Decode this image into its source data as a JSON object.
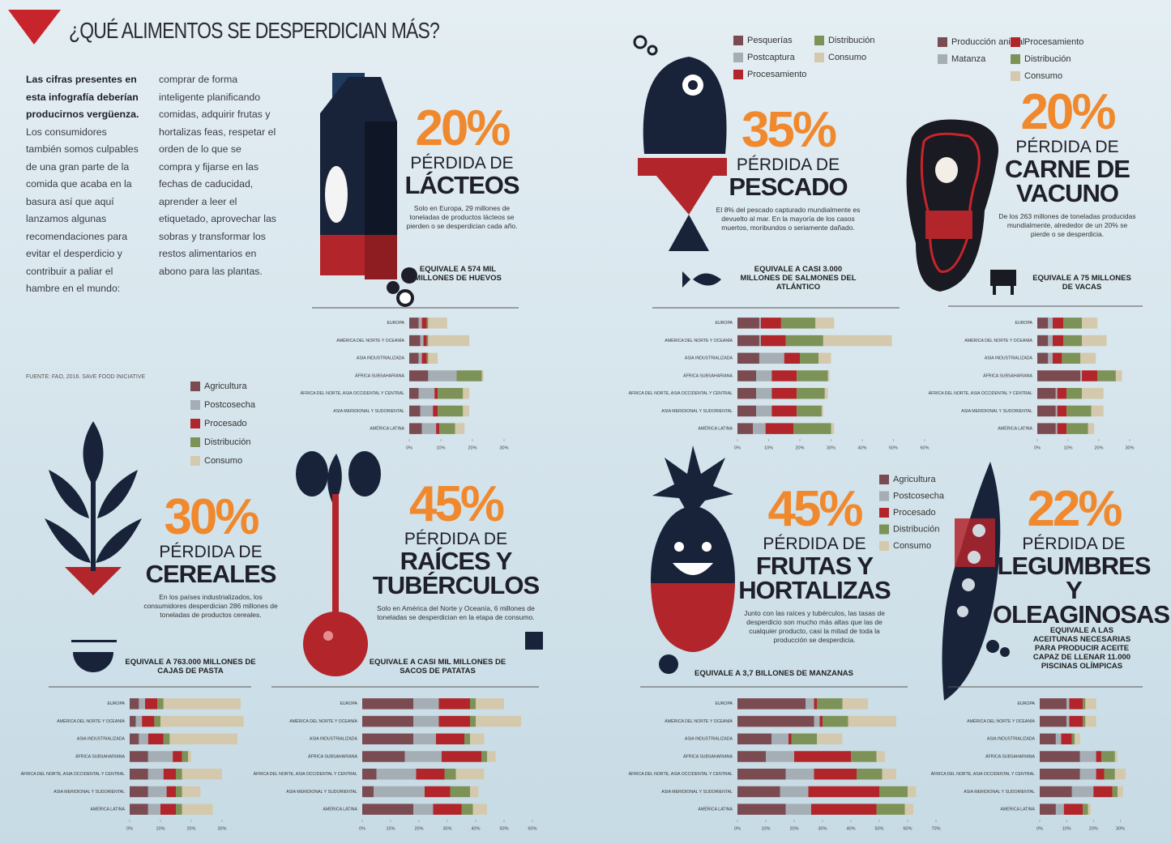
{
  "header": {
    "title": "¿QUÉ ALIMENTOS SE DESPERDICIAN MÁS?"
  },
  "intro": {
    "lead": "Las cifras presentes en esta infografía deberían producirnos vergüenza.",
    "text": "Los consumidores también somos culpables de una gran parte de la comida que acaba en la basura así que aquí lanzamos algunas recomendaciones para evitar el desperdicio y contribuir a paliar el hambre en el mundo: comprar de forma inteligente planificando comidas, adquirir frutas y hortalizas feas, respetar el orden de lo que se compra y fijarse en las fechas de caducidad, aprender a leer el etiquetado, aprovechar las sobras y transformar los restos alimentarios en abono para las plantas.",
    "source": "FUENTE: FAO, 2016. SAVE FOOD INICIATIVE"
  },
  "sections": [
    {
      "percent": "20%",
      "loss_label": "PÉRDIDA DE",
      "food": "LÁCTEOS",
      "description": "Solo en Europa, 29 millones de toneladas de productos lácteos se pierden o se desperdician cada año.",
      "equivalence": "EQUIVALE A 574 MIL MILLONES DE HUEVOS"
    },
    {
      "percent": "35%",
      "loss_label": "PÉRDIDA DE",
      "food": "PESCADO",
      "description": "El 8% del pescado capturado mundialmente es devuelto al mar. En la mayoría de los casos muertos, moribundos o seriamente dañado.",
      "equivalence": "EQUIVALE A CASI 3.000 MILLONES DE SALMONES DEL ATLÁNTICO"
    },
    {
      "percent": "20%",
      "loss_label": "PÉRDIDA DE",
      "food": "CARNE DE VACUNO",
      "description": "De los 263 millones de toneladas producidas mundialmente, alrededor de un 20% se pierde o se desperdicia.",
      "equivalence": "EQUIVALE A 75 MILLONES DE VACAS"
    },
    {
      "percent": "30%",
      "loss_label": "PÉRDIDA DE",
      "food": "CEREALES",
      "description": "En los países industrializados, los consumidores desperdician 286 millones de toneladas de productos cereales.",
      "equivalence": "EQUIVALE A 763.000 MILLONES DE CAJAS DE PASTA"
    },
    {
      "percent": "45%",
      "loss_label": "PÉRDIDA DE",
      "food": "RAÍCES Y TUBÉRCULOS",
      "description": "Solo en América del Norte y Oceanía, 6 millones de toneladas se desperdician en la etapa de consumo.",
      "equivalence": "EQUIVALE A CASI MIL MILLONES DE SACOS DE PATATAS"
    },
    {
      "percent": "45%",
      "loss_label": "PÉRDIDA DE",
      "food": "FRUTAS Y HORTALIZAS",
      "description": "Junto con las raíces y tubérculos, las tasas de desperdicio son mucho más altas que las de cualquier producto, casi la mitad de toda la producción se desperdicia.",
      "equivalence": "EQUIVALE A 3,7 BILLONES DE MANZANAS"
    },
    {
      "percent": "22%",
      "loss_label": "PÉRDIDA DE",
      "food": "LEGUMBRES Y OLEAGINOSAS",
      "equivalence": "EQUIVALE A LAS ACEITUNAS NECESARIAS PARA PRODUCIR ACEITE CAPAZ DE LLENAR 11.000 PISCINAS OLÍMPICAS"
    }
  ],
  "chart_data": [
    {
      "type": "stacked-barh",
      "categories": [
        "EUROPA",
        "AMÉRICA DEL NORTE Y OCEANÍA",
        "ASIA INDUSTRIALIZADA",
        "ÁFRICA SUBSAHARIANA",
        "ÁFRICA DEL NORTE, ASIA OCCIDENTAL Y CENTRAL",
        "ASIA MERIDIONAL Y SUDORIENTAL",
        "AMÉRICA LATINA"
      ],
      "series": [
        {
          "color": "#7b4b52",
          "values": [
            3,
            3.5,
            3,
            6,
            3,
            3.5,
            4
          ]
        },
        {
          "color": "#a4aeb4",
          "values": [
            1,
            1,
            1,
            9,
            5,
            4,
            4.5
          ]
        },
        {
          "color": "#b1252b",
          "values": [
            1.5,
            1,
            1.5,
            0,
            1,
            1.5,
            1
          ]
        },
        {
          "color": "#7d9257",
          "values": [
            0.5,
            0.5,
            0.5,
            8,
            8,
            8,
            5
          ]
        },
        {
          "color": "#d4c9ac",
          "values": [
            6,
            13,
            3,
            0.5,
            2,
            2,
            3
          ]
        }
      ],
      "xlim": [
        0,
        30
      ],
      "xticks": [
        {
          "value": 0,
          "label": "0%"
        },
        {
          "value": 10,
          "label": "10%"
        },
        {
          "value": 20,
          "label": "20%"
        },
        {
          "value": 30,
          "label": "30%"
        }
      ]
    },
    {
      "type": "stacked-barh",
      "categories": [
        "EUROPA",
        "AMÉRICA DEL NORTE Y OCEANÍA",
        "ASIA INDUSTRIALIZADA",
        "ÁFRICA SUBSAHARIANA",
        "ÁFRICA DEL NORTE, ASIA OCCIDENTAL Y CENTRAL",
        "ASIA MERIDIONAL Y SUDORIENTAL",
        "AMÉRICA LATINA"
      ],
      "series": [
        {
          "name": "Pesquerías",
          "color": "#7b4b52",
          "values": [
            7,
            7,
            7,
            6,
            6,
            6,
            5
          ]
        },
        {
          "name": "Postcaptura",
          "color": "#a4aeb4",
          "values": [
            0.5,
            0.5,
            8,
            5,
            5,
            5,
            4
          ]
        },
        {
          "name": "Procesamiento",
          "color": "#b1252b",
          "values": [
            6.5,
            8,
            5,
            8,
            8,
            8,
            9
          ]
        },
        {
          "name": "Distribución",
          "color": "#7d9257",
          "values": [
            11,
            12,
            6,
            10,
            9,
            8,
            12
          ]
        },
        {
          "name": "Consumo",
          "color": "#d4c9ac",
          "values": [
            6,
            22,
            4,
            0.5,
            1,
            0.5,
            1
          ]
        }
      ],
      "xlim": [
        0,
        60
      ],
      "xticks": [
        {
          "value": 0,
          "label": "0%"
        },
        {
          "value": 10,
          "label": "10%"
        },
        {
          "value": 20,
          "label": "20%"
        },
        {
          "value": 30,
          "label": "30%"
        },
        {
          "value": 40,
          "label": "40%"
        },
        {
          "value": 50,
          "label": "50%"
        },
        {
          "value": 60,
          "label": "60%"
        }
      ]
    },
    {
      "type": "stacked-barh",
      "categories": [
        "EUROPA",
        "AMÉRICA DEL NORTE Y OCEANÍA",
        "ASIA INDUSTRIALIZADA",
        "ÁFRICA SUBSAHARIANA",
        "ÁFRICA DEL NORTE, ASIA OCCIDENTAL Y CENTRAL",
        "ASIA MERIDIONAL Y SUDORIENTAL",
        "AMÉRICA LATINA"
      ],
      "series": [
        {
          "name": "Producción animal",
          "color": "#7b4b52",
          "values": [
            3.5,
            3.5,
            3.5,
            14,
            6,
            6,
            6
          ]
        },
        {
          "name": "Matanza",
          "color": "#a4aeb4",
          "values": [
            1.5,
            1.5,
            1.5,
            0.5,
            0.5,
            0.5,
            0.5
          ]
        },
        {
          "name": "Procesamiento",
          "color": "#b1252b",
          "values": [
            3.5,
            3.5,
            3,
            5,
            3,
            3,
            3
          ]
        },
        {
          "name": "Distribución",
          "color": "#7d9257",
          "values": [
            6,
            6,
            6,
            6,
            5,
            8,
            7
          ]
        },
        {
          "name": "Consumo",
          "color": "#d4c9ac",
          "values": [
            5,
            8,
            5,
            2,
            7,
            4,
            2
          ]
        }
      ],
      "xlim": [
        0,
        35
      ],
      "xticks": [
        {
          "value": 0,
          "label": "0%"
        },
        {
          "value": 10,
          "label": "10%"
        },
        {
          "value": 20,
          "label": "20%"
        },
        {
          "value": 30,
          "label": "30%"
        }
      ]
    },
    {
      "type": "stacked-barh",
      "categories": [
        "EUROPA",
        "AMÉRICA DEL NORTE Y OCEANÍA",
        "ASIA INDUSTRIALIZADA",
        "ÁFRICA SUBSAHARIANA",
        "ÁFRICA DEL NORTE, ASIA OCCIDENTAL Y CENTRAL",
        "ASIA MERIDIONAL Y SUDORIENTAL",
        "AMÉRICA LATINA"
      ],
      "series": [
        {
          "name": "Agricultura",
          "color": "#7b4b52",
          "values": [
            3,
            2,
            3,
            6,
            6,
            6,
            6
          ]
        },
        {
          "name": "Postcosecha",
          "color": "#a4aeb4",
          "values": [
            2,
            2,
            3,
            8,
            5,
            6,
            4
          ]
        },
        {
          "name": "Procesado",
          "color": "#b1252b",
          "values": [
            4,
            4,
            5,
            3,
            4,
            3,
            5
          ]
        },
        {
          "name": "Distribución",
          "color": "#7d9257",
          "values": [
            2,
            2,
            2,
            2,
            2,
            2,
            2
          ]
        },
        {
          "name": "Consumo",
          "color": "#d4c9ac",
          "values": [
            25,
            27,
            22,
            1,
            13,
            6,
            10
          ]
        }
      ],
      "xlim": [
        0,
        40
      ],
      "xticks": [
        {
          "value": 0,
          "label": "0%"
        },
        {
          "value": 10,
          "label": "10%"
        },
        {
          "value": 20,
          "label": "20%"
        },
        {
          "value": 30,
          "label": "30%"
        }
      ]
    },
    {
      "type": "stacked-barh",
      "categories": [
        "EUROPA",
        "AMÉRICA DEL NORTE Y OCEANÍA",
        "ASIA INDUSTRIALIZADA",
        "ÁFRICA SUBSAHARIANA",
        "ÁFRICA DEL NORTE, ASIA OCCIDENTAL Y CENTRAL",
        "ASIA MERIDIONAL Y SUDORIENTAL",
        "AMÉRICA LATINA"
      ],
      "series": [
        {
          "color": "#7b4b52",
          "values": [
            18,
            18,
            18,
            15,
            5,
            4,
            18
          ]
        },
        {
          "color": "#a4aeb4",
          "values": [
            9,
            9,
            8,
            13,
            14,
            18,
            7
          ]
        },
        {
          "color": "#b1252b",
          "values": [
            11,
            11,
            10,
            14,
            10,
            9,
            10
          ]
        },
        {
          "color": "#7d9257",
          "values": [
            2,
            2,
            2,
            2,
            4,
            7,
            4
          ]
        },
        {
          "color": "#d4c9ac",
          "values": [
            10,
            16,
            5,
            3,
            10,
            3,
            5
          ]
        }
      ],
      "xlim": [
        0,
        60
      ],
      "xticks": [
        {
          "value": 0,
          "label": "0%"
        },
        {
          "value": 10,
          "label": "10%"
        },
        {
          "value": 20,
          "label": "20%"
        },
        {
          "value": 30,
          "label": "30%"
        },
        {
          "value": 40,
          "label": "40%"
        },
        {
          "value": 50,
          "label": "50%"
        },
        {
          "value": 60,
          "label": "60%"
        }
      ]
    },
    {
      "type": "stacked-barh",
      "categories": [
        "EUROPA",
        "AMÉRICA DEL NORTE Y OCEANÍA",
        "ASIA INDUSTRIALIZADA",
        "ÁFRICA SUBSAHARIANA",
        "ÁFRICA DEL NORTE, ASIA OCCIDENTAL Y CENTRAL",
        "ASIA MERIDIONAL Y SUDORIENTAL",
        "AMÉRICA LATINA"
      ],
      "series": [
        {
          "name": "Agricultura",
          "color": "#7b4b52",
          "values": [
            24,
            27,
            12,
            10,
            17,
            15,
            17
          ]
        },
        {
          "name": "Postcosecha",
          "color": "#a4aeb4",
          "values": [
            3,
            2,
            6,
            10,
            10,
            10,
            9
          ]
        },
        {
          "name": "Procesado",
          "color": "#b1252b",
          "values": [
            1,
            1,
            1,
            20,
            15,
            25,
            23
          ]
        },
        {
          "name": "Distribución",
          "color": "#7d9257",
          "values": [
            9,
            9,
            9,
            9,
            9,
            10,
            10
          ]
        },
        {
          "name": "Consumo",
          "color": "#d4c9ac",
          "values": [
            9,
            17,
            9,
            3,
            5,
            3,
            3
          ]
        }
      ],
      "xlim": [
        0,
        70
      ],
      "xticks": [
        {
          "value": 0,
          "label": "0%"
        },
        {
          "value": 10,
          "label": "10%"
        },
        {
          "value": 20,
          "label": "20%"
        },
        {
          "value": 30,
          "label": "30%"
        },
        {
          "value": 40,
          "label": "40%"
        },
        {
          "value": 50,
          "label": "50%"
        },
        {
          "value": 60,
          "label": "60%"
        },
        {
          "value": 70,
          "label": "70%"
        }
      ]
    },
    {
      "type": "stacked-barh",
      "categories": [
        "EUROPA",
        "AMÉRICA DEL NORTE Y OCEANÍA",
        "ASIA INDUSTRIALIZADA",
        "ÁFRICA SUBSAHARIANA",
        "ÁFRICA DEL NORTE, ASIA OCCIDENTAL Y CENTRAL",
        "ASIA MERIDIONAL Y SUDORIENTAL",
        "AMÉRICA LATINA"
      ],
      "series": [
        {
          "color": "#7b4b52",
          "values": [
            10,
            10,
            6,
            15,
            15,
            12,
            6
          ]
        },
        {
          "color": "#a4aeb4",
          "values": [
            1,
            1,
            2,
            6,
            6,
            8,
            3
          ]
        },
        {
          "color": "#b1252b",
          "values": [
            5,
            5,
            4,
            2,
            3,
            7,
            7
          ]
        },
        {
          "color": "#7d9257",
          "values": [
            1,
            1,
            1,
            5,
            4,
            2,
            2
          ]
        },
        {
          "color": "#d4c9ac",
          "values": [
            4,
            4,
            2,
            1,
            4,
            2,
            1
          ]
        }
      ],
      "xlim": [
        0,
        35
      ],
      "xticks": [
        {
          "value": 0,
          "label": "0%"
        },
        {
          "value": 10,
          "label": "10%"
        },
        {
          "value": 20,
          "label": "20%"
        },
        {
          "value": 30,
          "label": "30%"
        }
      ]
    }
  ]
}
